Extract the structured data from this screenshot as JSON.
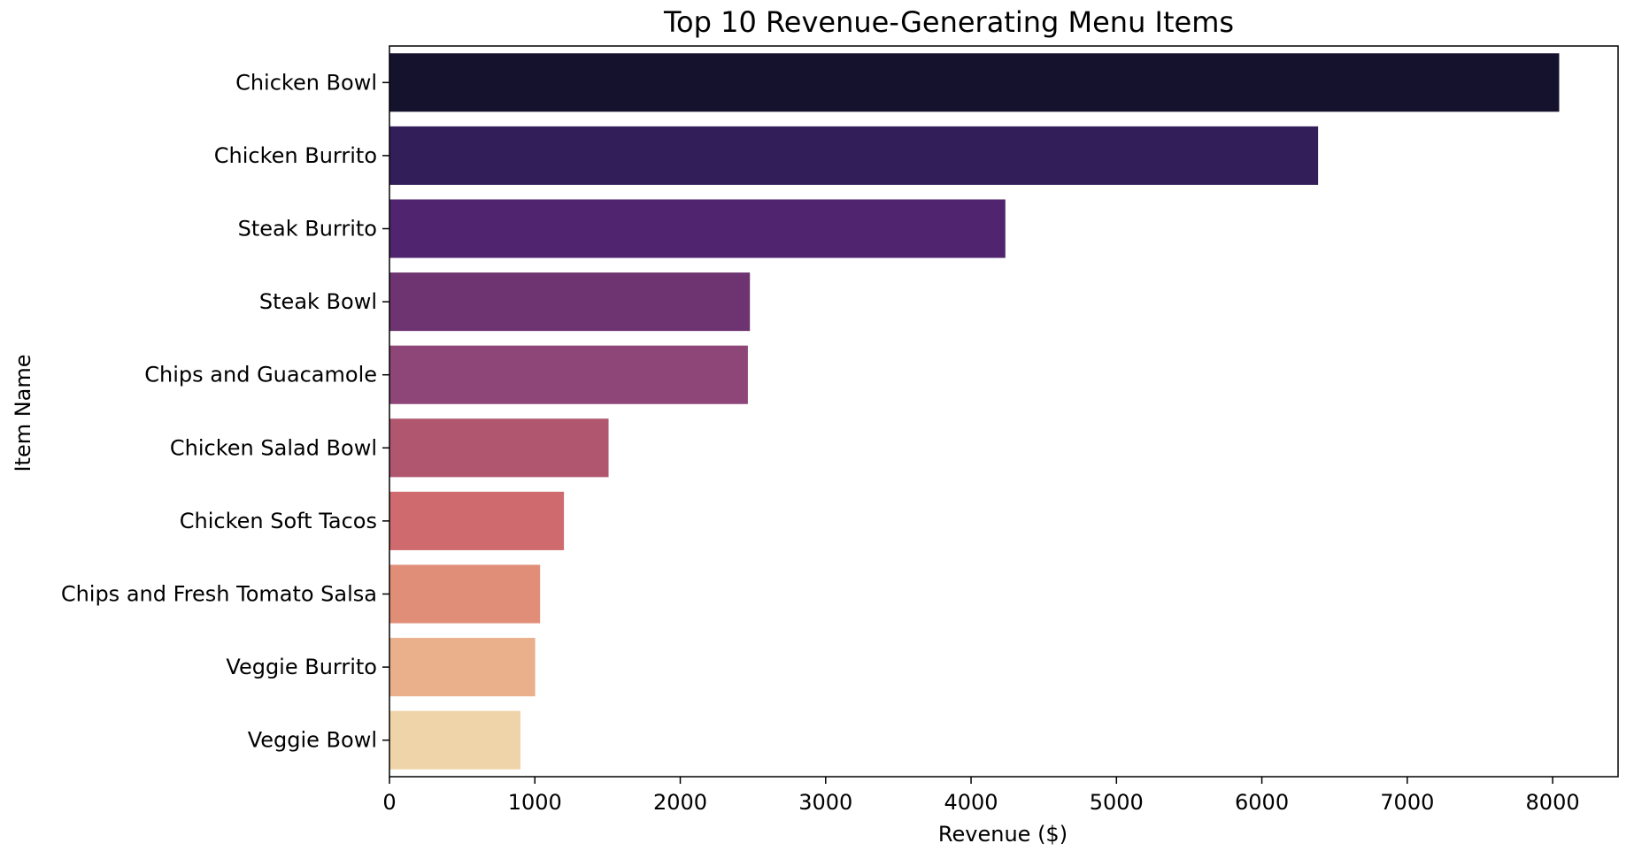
{
  "chart_data": {
    "type": "bar",
    "orientation": "horizontal",
    "title": "Top 10 Revenue-Generating Menu Items",
    "xlabel": "Revenue ($)",
    "ylabel": "Item Name",
    "categories": [
      "Chicken Bowl",
      "Chicken Burrito",
      "Steak Burrito",
      "Steak Bowl",
      "Chips and Guacamole",
      "Chicken Salad Bowl",
      "Chicken Soft Tacos",
      "Chips and Fresh Tomato Salsa",
      "Veggie Burrito",
      "Veggie Bowl"
    ],
    "values": [
      8045,
      6387,
      4236,
      2479,
      2465,
      1507,
      1200,
      1036,
      1002,
      901
    ],
    "colors": [
      "#15122d",
      "#321e58",
      "#50246e",
      "#6d3471",
      "#8e4577",
      "#b0566f",
      "#cf6b6f",
      "#e18e79",
      "#eab08b",
      "#efd4a9"
    ],
    "xlim": [
      0,
      8450
    ],
    "xticks": [
      0,
      1000,
      2000,
      3000,
      4000,
      5000,
      6000,
      7000,
      8000
    ],
    "xtick_labels": [
      "0",
      "1000",
      "2000",
      "3000",
      "4000",
      "5000",
      "6000",
      "7000",
      "8000"
    ],
    "grid": false,
    "legend": "none"
  }
}
